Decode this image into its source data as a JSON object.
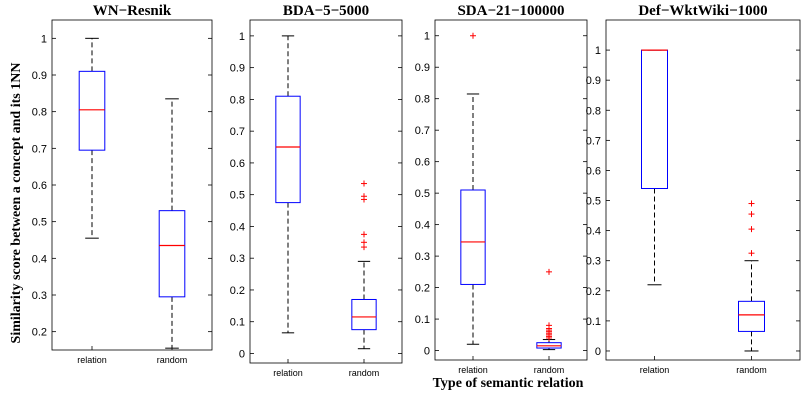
{
  "figure": {
    "ylabel": "Similarity score between a concept and its 1NN",
    "xlabel": "Type of semantic relation",
    "colors": {
      "box": "#0000ff",
      "median": "#ff0000",
      "whisker": "#000000",
      "outlier": "#ff0000"
    }
  },
  "chart_data": [
    {
      "type": "box",
      "title": "WN−Resnik",
      "categories": [
        "relation",
        "random"
      ],
      "ylim": [
        0.15,
        1.05
      ],
      "yticks": [
        0.2,
        0.3,
        0.4,
        0.5,
        0.6,
        0.7,
        0.8,
        0.9,
        1
      ],
      "ytick_labels": [
        "0.2",
        "0.3",
        "0.4",
        "0.5",
        "0.6",
        "0.7",
        "0.8",
        "0.9",
        "1"
      ],
      "boxes": [
        {
          "whislo": 0.455,
          "q1": 0.695,
          "med": 0.805,
          "q3": 0.91,
          "whishi": 1.0,
          "fliers": []
        },
        {
          "whislo": 0.155,
          "q1": 0.295,
          "med": 0.435,
          "q3": 0.53,
          "whishi": 0.835,
          "fliers": []
        }
      ]
    },
    {
      "type": "box",
      "title": "BDA−5−5000",
      "categories": [
        "relation",
        "random"
      ],
      "ylim": [
        -0.03,
        1.05
      ],
      "yticks": [
        0,
        0.1,
        0.2,
        0.3,
        0.4,
        0.5,
        0.6,
        0.7,
        0.8,
        0.9,
        1
      ],
      "ytick_labels": [
        "0",
        "0.1",
        "0.2",
        "0.3",
        "0.4",
        "0.5",
        "0.6",
        "0.7",
        "0.8",
        "0.9",
        "1"
      ],
      "boxes": [
        {
          "whislo": 0.065,
          "q1": 0.475,
          "med": 0.65,
          "q3": 0.81,
          "whishi": 1.0,
          "fliers": []
        },
        {
          "whislo": 0.015,
          "q1": 0.075,
          "med": 0.115,
          "q3": 0.17,
          "whishi": 0.29,
          "fliers": [
            0.335,
            0.35,
            0.375,
            0.485,
            0.495,
            0.535
          ]
        }
      ]
    },
    {
      "type": "box",
      "title": "SDA−21−100000",
      "categories": [
        "relation",
        "random"
      ],
      "ylim": [
        -0.03,
        1.05
      ],
      "yticks": [
        0,
        0.1,
        0.2,
        0.3,
        0.4,
        0.5,
        0.6,
        0.7,
        0.8,
        0.9,
        1
      ],
      "ytick_labels": [
        "0",
        "0.1",
        "0.2",
        "0.3",
        "0.4",
        "0.5",
        "0.6",
        "0.7",
        "0.8",
        "0.9",
        "1"
      ],
      "boxes": [
        {
          "whislo": 0.02,
          "q1": 0.21,
          "med": 0.345,
          "q3": 0.51,
          "whishi": 0.815,
          "fliers": [
            1.0
          ]
        },
        {
          "whislo": 0.003,
          "q1": 0.008,
          "med": 0.015,
          "q3": 0.025,
          "whishi": 0.035,
          "fliers": [
            0.04,
            0.045,
            0.05,
            0.055,
            0.06,
            0.065,
            0.07,
            0.08,
            0.25
          ]
        }
      ]
    },
    {
      "type": "box",
      "title": "Def−WktWiki−1000",
      "categories": [
        "relation",
        "random"
      ],
      "ylim": [
        -0.03,
        1.1
      ],
      "yticks": [
        0,
        0.1,
        0.2,
        0.3,
        0.4,
        0.5,
        0.6,
        0.7,
        0.8,
        0.9,
        1
      ],
      "ytick_labels": [
        "0",
        "0.1",
        "0.2",
        "0.3",
        "0.4",
        "0.5",
        "0.6",
        "0.7",
        "0.8",
        "0.9",
        "1"
      ],
      "boxes": [
        {
          "whislo": 0.22,
          "q1": 0.54,
          "med": 1.0,
          "q3": 1.0,
          "whishi": 1.0,
          "fliers": []
        },
        {
          "whislo": 0.0,
          "q1": 0.065,
          "med": 0.12,
          "q3": 0.165,
          "whishi": 0.3,
          "fliers": [
            0.325,
            0.405,
            0.455,
            0.49
          ]
        }
      ]
    }
  ]
}
